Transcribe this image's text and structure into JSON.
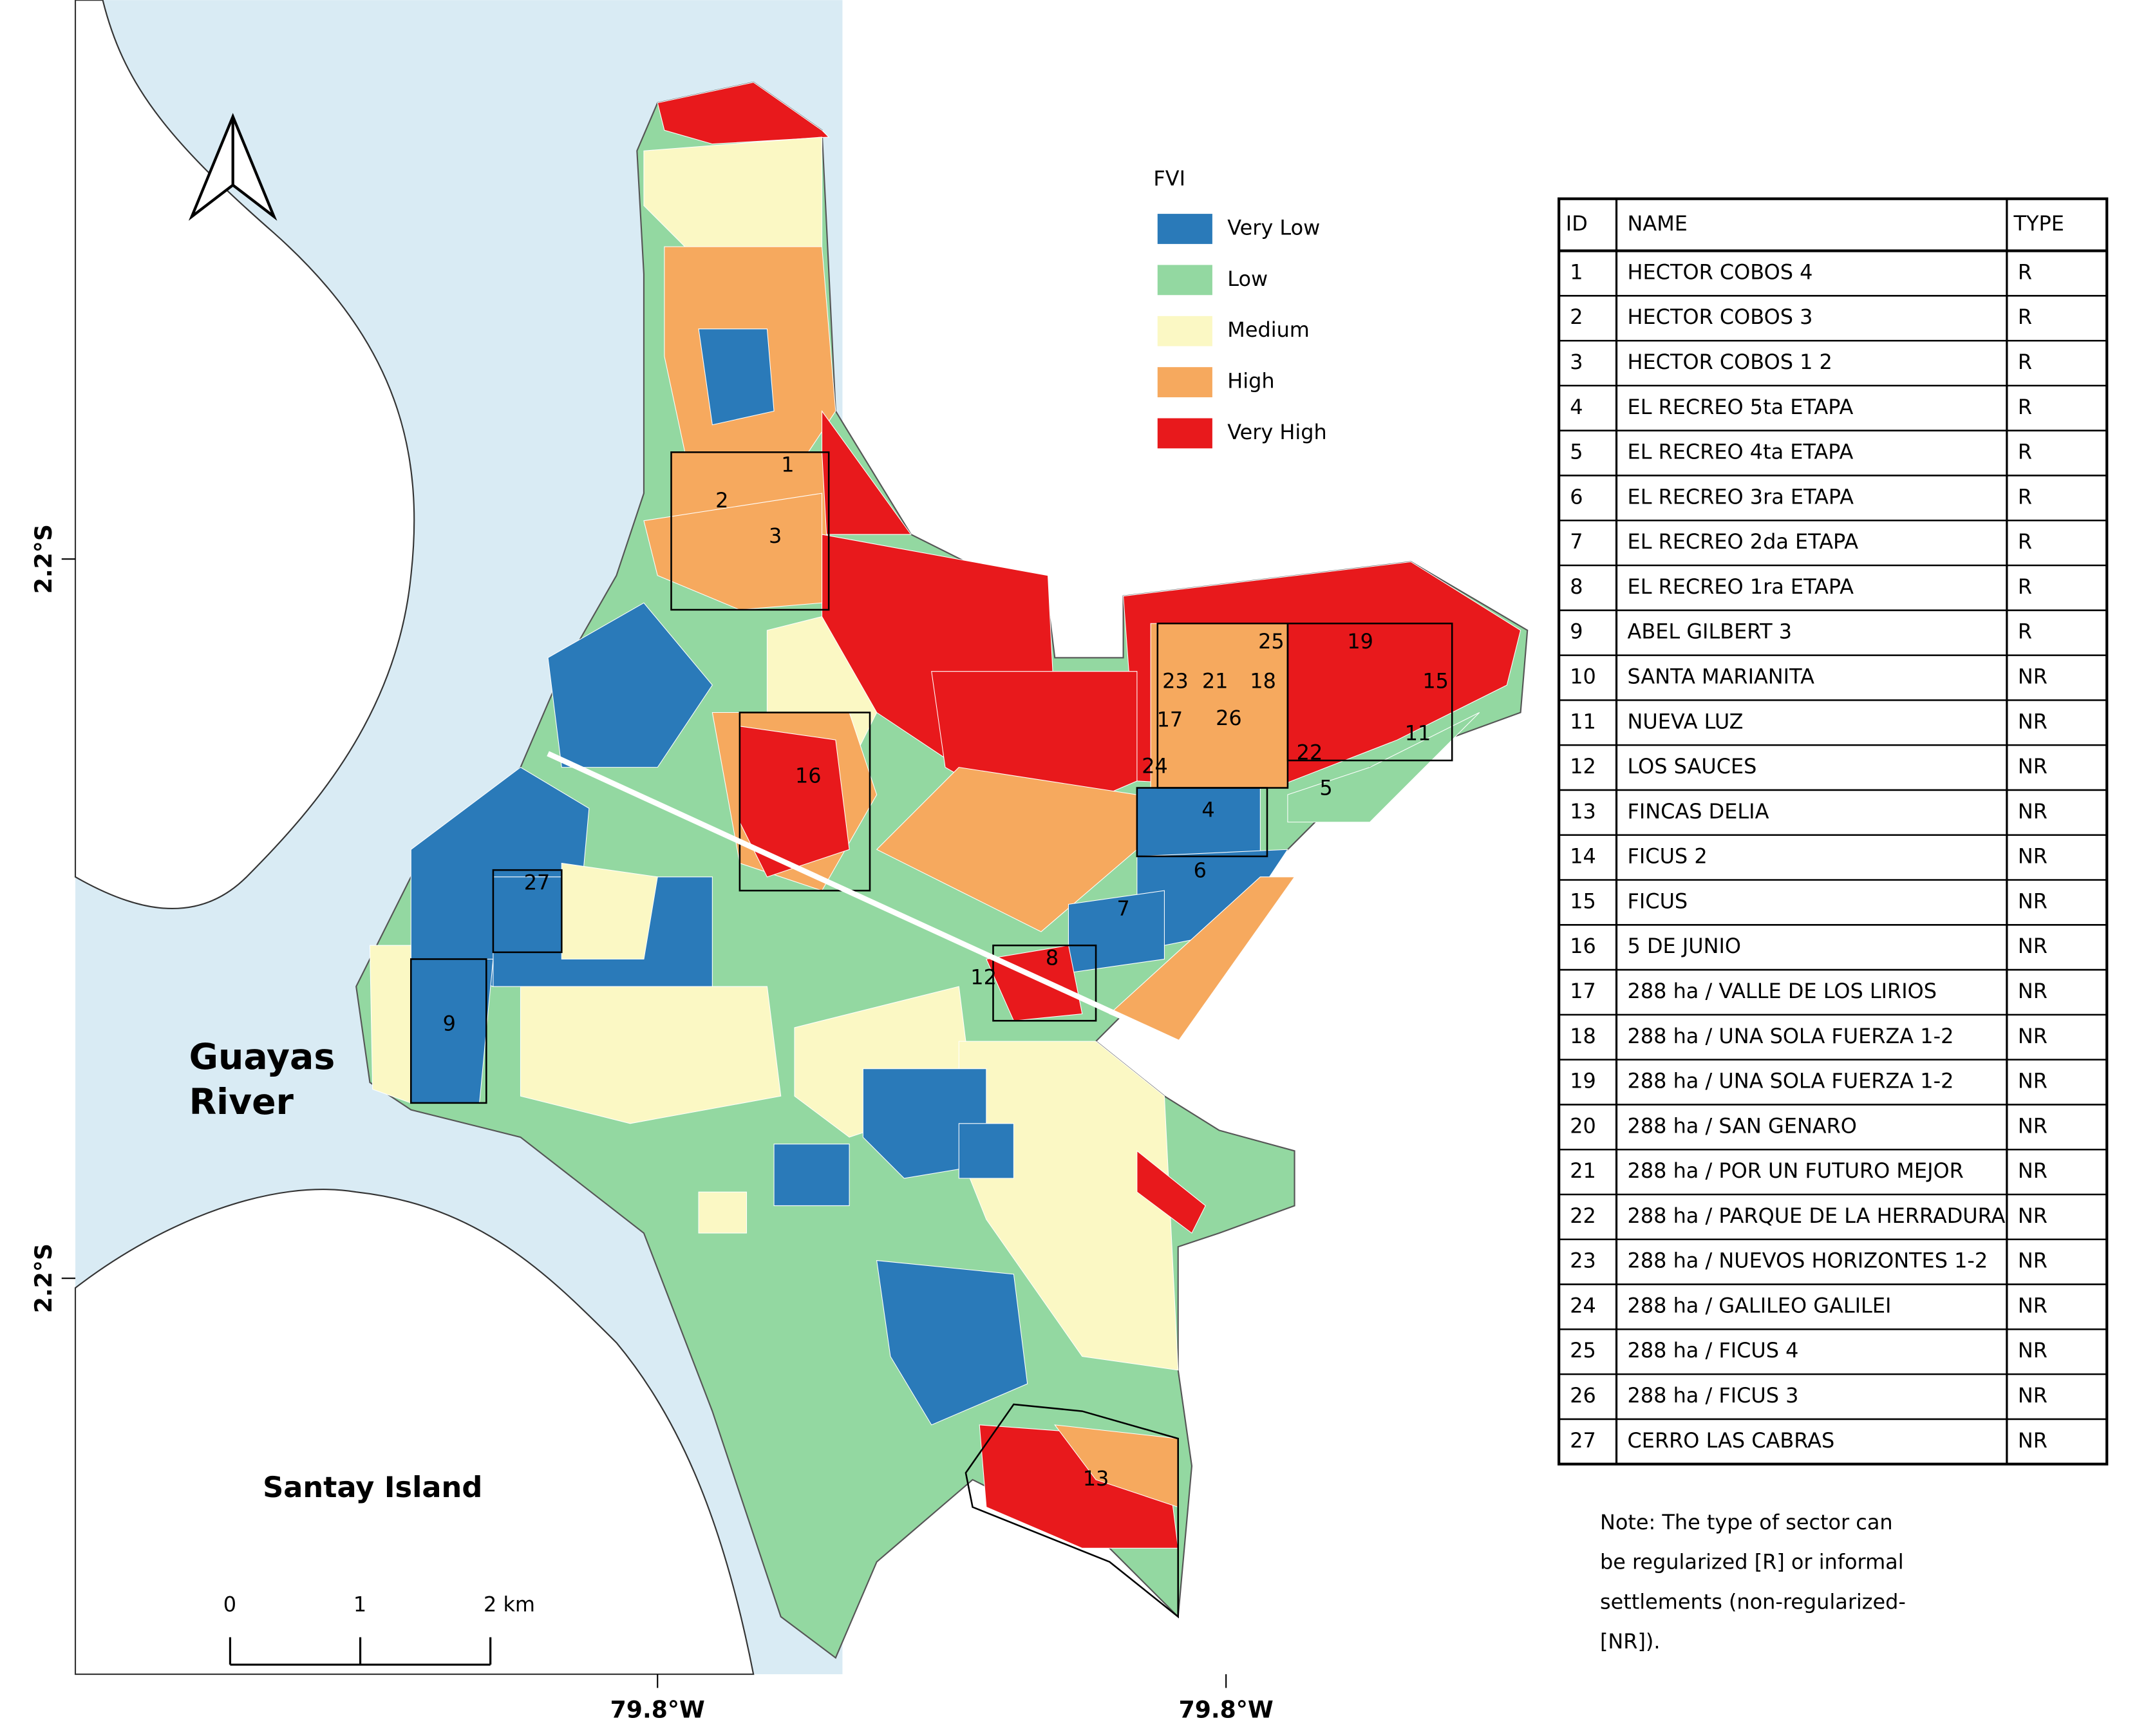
{
  "map": {
    "river_label": [
      "Guayas",
      "River"
    ],
    "island_label": "Santay Island",
    "lat_labels": [
      "2.2°S",
      "2.2°S"
    ],
    "lon_labels": [
      "79.8°W",
      "79.8°W"
    ],
    "scale_bar": [
      "0",
      "1",
      "2 km"
    ],
    "sector_labels": [
      "1",
      "2",
      "3",
      "4",
      "5",
      "6",
      "7",
      "8",
      "9",
      "11",
      "12",
      "13",
      "15",
      "16",
      "17",
      "18",
      "19",
      "21",
      "22",
      "23",
      "24",
      "25",
      "26",
      "27"
    ]
  },
  "legend": {
    "title": "FVI",
    "items": [
      {
        "label": "Very Low",
        "color": "#2a7ab9"
      },
      {
        "label": "Low",
        "color": "#93d8a1"
      },
      {
        "label": "Medium",
        "color": "#fbf8c4"
      },
      {
        "label": "High",
        "color": "#f6a95e"
      },
      {
        "label": "Very High",
        "color": "#e8191c"
      }
    ]
  },
  "table": {
    "header": [
      "ID",
      "NAME",
      "TYPE"
    ],
    "rows": [
      [
        "1",
        "HECTOR COBOS 4",
        "R"
      ],
      [
        "2",
        "HECTOR COBOS 3",
        "R"
      ],
      [
        "3",
        "HECTOR COBOS 1 2",
        "R"
      ],
      [
        "4",
        "EL RECREO 5ta ETAPA",
        "R"
      ],
      [
        "5",
        "EL RECREO 4ta ETAPA",
        "R"
      ],
      [
        "6",
        "EL RECREO 3ra ETAPA",
        "R"
      ],
      [
        "7",
        "EL RECREO 2da ETAPA",
        "R"
      ],
      [
        "8",
        "EL RECREO 1ra ETAPA",
        "R"
      ],
      [
        "9",
        "ABEL GILBERT 3",
        "R"
      ],
      [
        "10",
        "SANTA MARIANITA",
        "NR"
      ],
      [
        "11",
        "NUEVA LUZ",
        "NR"
      ],
      [
        "12",
        "LOS SAUCES",
        "NR"
      ],
      [
        "13",
        "FINCAS DELIA",
        "NR"
      ],
      [
        "14",
        "FICUS 2",
        "NR"
      ],
      [
        "15",
        "FICUS",
        "NR"
      ],
      [
        "16",
        "5 DE JUNIO",
        "NR"
      ],
      [
        "17",
        "288 ha / VALLE DE LOS LIRIOS",
        "NR"
      ],
      [
        "18",
        "288 ha / UNA SOLA FUERZA 1-2",
        "NR"
      ],
      [
        "19",
        "288 ha / UNA SOLA FUERZA 1-2",
        "NR"
      ],
      [
        "20",
        "288 ha / SAN GENARO",
        "NR"
      ],
      [
        "21",
        "288 ha / POR UN FUTURO MEJOR",
        "NR"
      ],
      [
        "22",
        "288 ha / PARQUE DE LA HERRADURA",
        "NR"
      ],
      [
        "23",
        "288 ha / NUEVOS HORIZONTES 1-2",
        "NR"
      ],
      [
        "24",
        "288 ha / GALILEO GALILEI",
        "NR"
      ],
      [
        "25",
        "288 ha / FICUS 4",
        "NR"
      ],
      [
        "26",
        "288 ha / FICUS 3",
        "NR"
      ],
      [
        "27",
        "CERRO LAS CABRAS",
        "NR"
      ]
    ]
  },
  "note": [
    "Note: The type of sector can",
    "be regularized [R] or informal",
    "settlements (non-regularized-",
    "[NR])."
  ]
}
